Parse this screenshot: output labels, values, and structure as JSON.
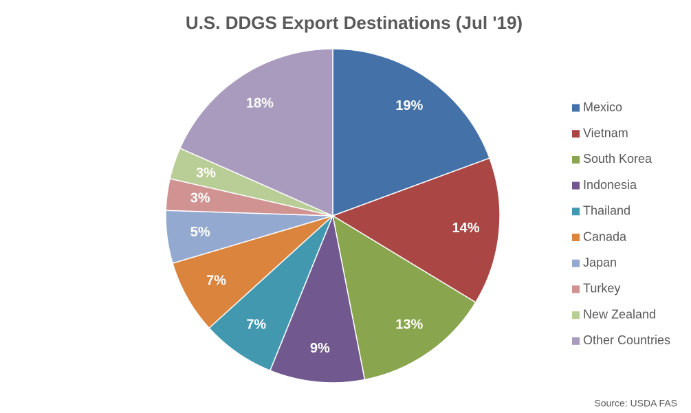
{
  "chart_data": {
    "type": "pie",
    "title": "U.S. DDGS Export Destinations (Jul '19)",
    "categories": [
      "Mexico",
      "Vietnam",
      "South Korea",
      "Indonesia",
      "Thailand",
      "Canada",
      "Japan",
      "Turkey",
      "New Zealand",
      "Other Countries"
    ],
    "values": [
      19,
      14,
      13,
      9,
      7,
      7,
      5,
      3,
      3,
      18
    ],
    "value_labels": [
      "19%",
      "14%",
      "13%",
      "9%",
      "7%",
      "7%",
      "5%",
      "3%",
      "3%",
      "18%"
    ],
    "colors": [
      "#4571a9",
      "#aa4644",
      "#89a54e",
      "#71598f",
      "#4198af",
      "#db843d",
      "#93a9cf",
      "#d19392",
      "#b9cd96",
      "#a99bbd"
    ],
    "legend": "right",
    "source": "Source: USDA FAS"
  }
}
